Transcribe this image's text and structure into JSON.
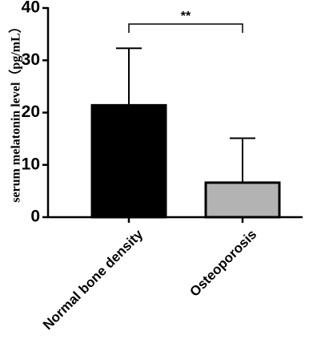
{
  "chart_data": {
    "type": "bar",
    "categories": [
      "Normal bone density",
      "Osteoporosis"
    ],
    "values": [
      21.4,
      6.6
    ],
    "error_upper": [
      32.3,
      15.1
    ],
    "bar_colors": [
      "#000000",
      "#b3b3b3"
    ],
    "ylabel": "serum melatonin level（pg/mL）",
    "ylim": [
      0,
      40
    ],
    "yticks": [
      "0",
      "10",
      "20",
      "30",
      "40"
    ],
    "significance": {
      "label": "**",
      "between": [
        0,
        1
      ]
    },
    "grid": false,
    "legend": "none"
  }
}
